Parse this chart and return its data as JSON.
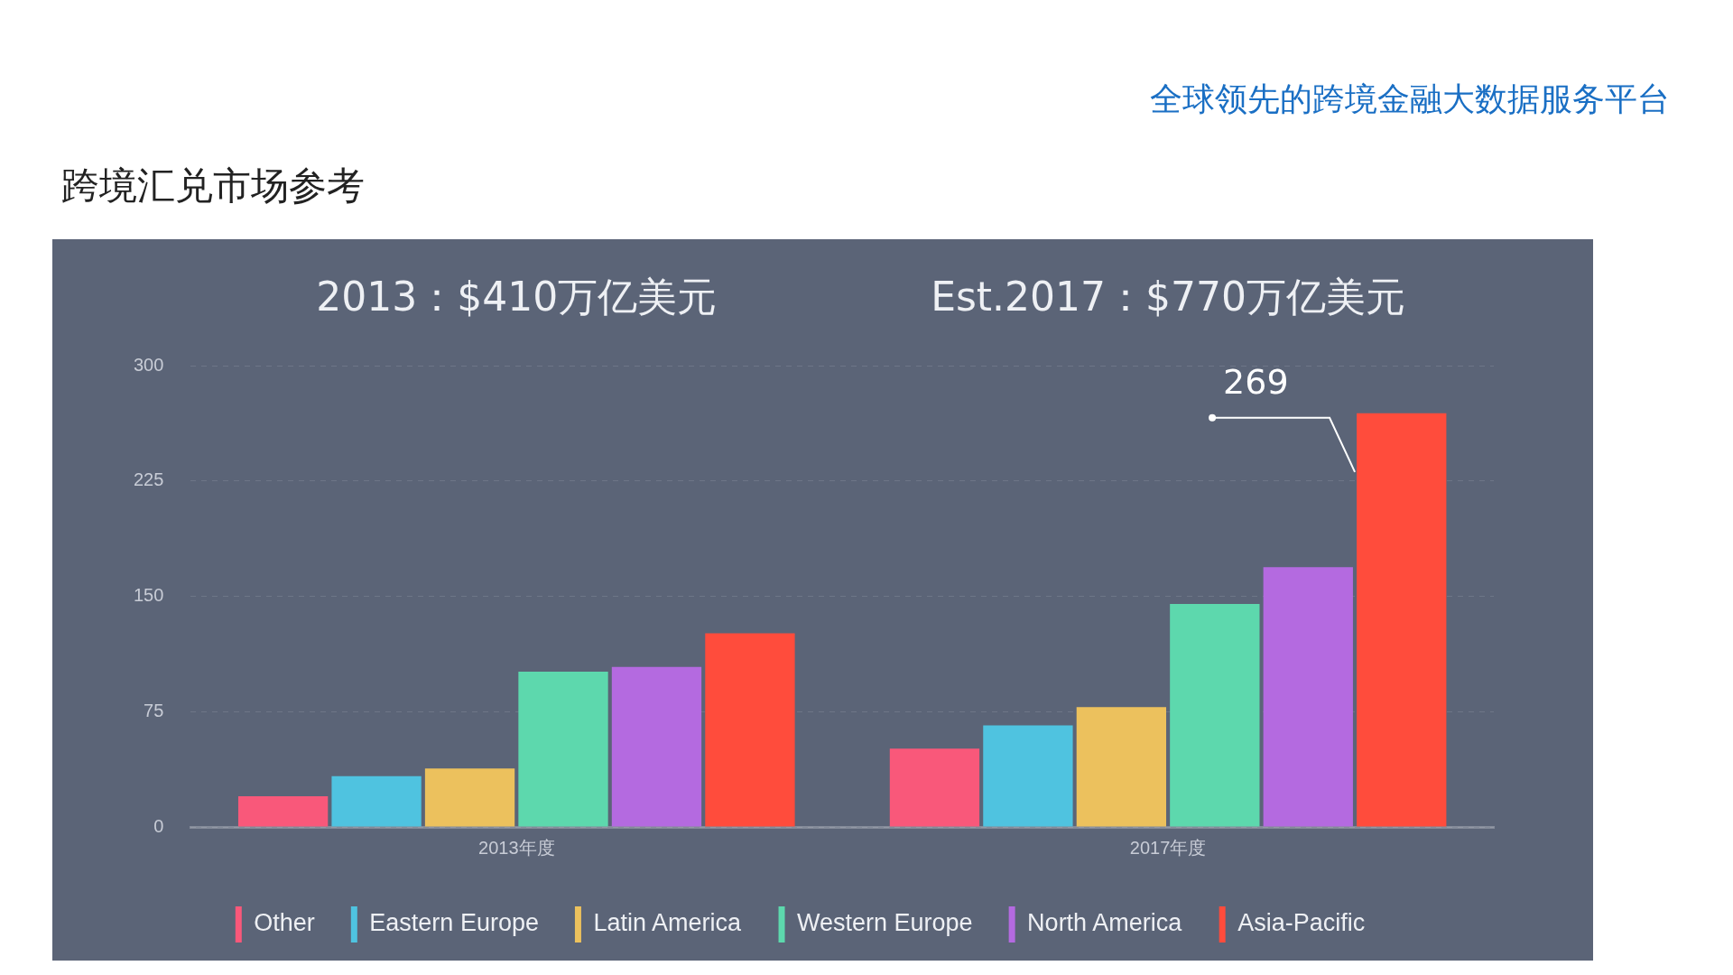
{
  "chart_data": {
    "type": "bar",
    "title": "跨境汇兑市场参考",
    "subtitle": "全球领先的跨境金融大数据服务平台",
    "categories": [
      "2013年度",
      "2017年度"
    ],
    "series": [
      {
        "name": "Other",
        "color": "#f9587a",
        "values": [
          20,
          51
        ]
      },
      {
        "name": "Eastern Europe",
        "color": "#4fc3e0",
        "values": [
          33,
          66
        ]
      },
      {
        "name": "Latin America",
        "color": "#ecc15d",
        "values": [
          38,
          78
        ]
      },
      {
        "name": "Western Europe",
        "color": "#5dd8ad",
        "values": [
          101,
          145
        ]
      },
      {
        "name": "North America",
        "color": "#b46ae0",
        "values": [
          104,
          169
        ]
      },
      {
        "name": "Asia-Pacific",
        "color": "#ff4c3c",
        "values": [
          126,
          269
        ]
      }
    ],
    "ylim": [
      0,
      300
    ],
    "yticks": [
      0,
      75,
      150,
      225,
      300
    ],
    "grid": "y",
    "legend": "bottom",
    "annotations": [
      "2013：$410万亿美元",
      "Est.2017：$770万亿美元",
      "269"
    ]
  }
}
